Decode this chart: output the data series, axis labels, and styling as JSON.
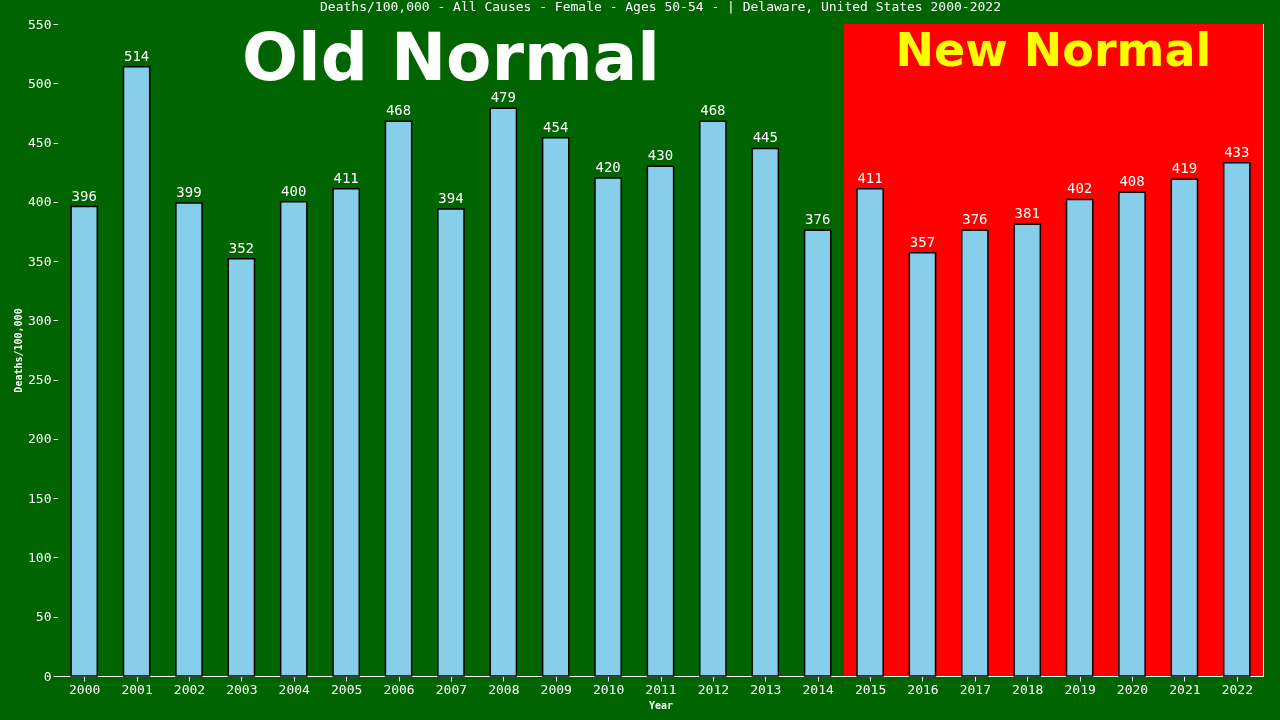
{
  "chart_data": {
    "type": "bar",
    "title": "Deaths/100,000 - All Causes - Female - Ages 50-54 -  | Delaware, United States 2000-2022",
    "xlabel": "Year",
    "ylabel": "Deaths/100,000",
    "categories": [
      "2000",
      "2001",
      "2002",
      "2003",
      "2004",
      "2005",
      "2006",
      "2007",
      "2008",
      "2009",
      "2010",
      "2011",
      "2012",
      "2013",
      "2014",
      "2015",
      "2016",
      "2017",
      "2018",
      "2019",
      "2020",
      "2021",
      "2022"
    ],
    "values": [
      396,
      514,
      399,
      352,
      400,
      411,
      468,
      394,
      479,
      454,
      420,
      430,
      468,
      445,
      376,
      411,
      357,
      376,
      381,
      402,
      408,
      419,
      433
    ],
    "color": "#87ceeb",
    "ylim": [
      0,
      550
    ],
    "yticks": [
      0,
      50,
      100,
      150,
      200,
      250,
      300,
      350,
      400,
      450,
      500,
      550
    ],
    "grid": false,
    "data_labels": true,
    "bands": [
      {
        "axis": "x",
        "from": "2000",
        "to": "2014",
        "label": "Old Normal",
        "color": "#006400"
      },
      {
        "axis": "x",
        "from": "2015",
        "to": "2022",
        "label": "New Normal",
        "color": "#ff0000"
      }
    ]
  }
}
